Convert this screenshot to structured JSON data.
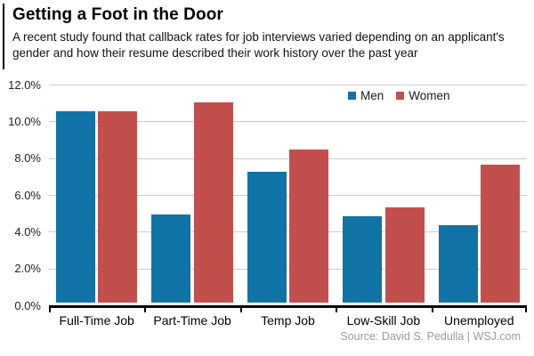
{
  "header": {
    "title": "Getting a Foot in the Door",
    "subtitle": "A recent study found that callback rates for job interviews varied depending on an applicant's gender and how their resume described their work history over the past year"
  },
  "colors": {
    "men": "#1172A5",
    "women": "#C34F4D",
    "gridline": "#CBCBCB",
    "axis": "#000000",
    "tick": "#000000",
    "source_text": "#9B9B9B"
  },
  "chart_data": {
    "type": "bar",
    "title": "Getting a Foot in the Door",
    "categories": [
      "Full-Time Job",
      "Part-Time Job",
      "Temp Job",
      "Low-Skill Job",
      "Unemployed"
    ],
    "series": [
      {
        "name": "Men",
        "color": "#1172A5",
        "values": [
          10.4,
          4.8,
          7.1,
          4.7,
          4.2
        ]
      },
      {
        "name": "Women",
        "color": "#C34F4D",
        "values": [
          10.4,
          10.9,
          8.3,
          5.2,
          7.5
        ]
      }
    ],
    "xlabel": "",
    "ylabel": "",
    "ylim": [
      0,
      12
    ],
    "ytick_interval": 2,
    "ytick_labels": [
      "0.0%",
      "2.0%",
      "4.0%",
      "6.0%",
      "8.0%",
      "10.0%",
      "12.0%"
    ],
    "grid": true,
    "legend_position": "top-inside-right"
  },
  "footer": {
    "source": "Source: David S. Pedulla  |  WSJ.com"
  }
}
